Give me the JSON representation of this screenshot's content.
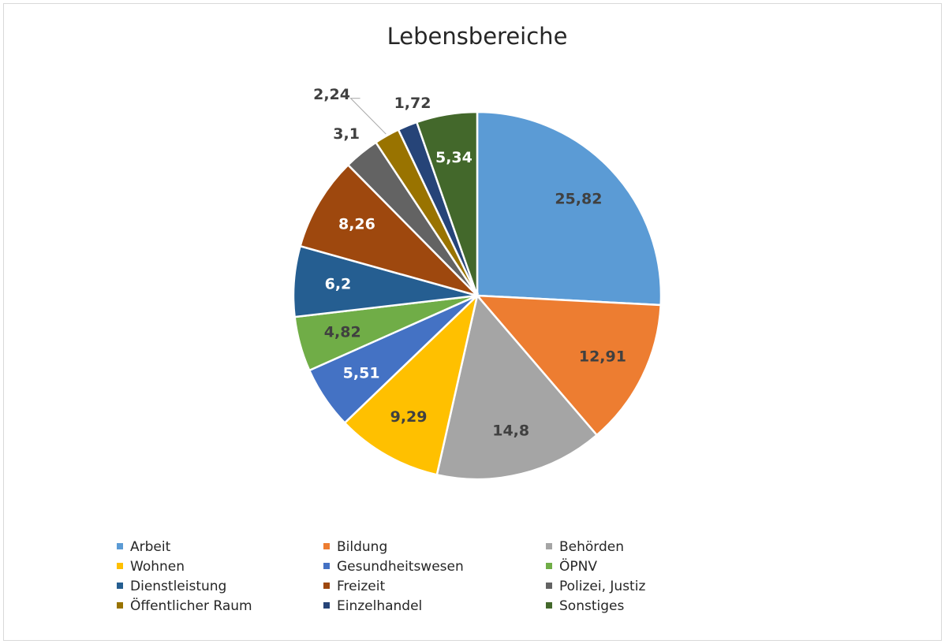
{
  "chart_data": {
    "type": "pie",
    "title": "Lebensbereiche",
    "categories": [
      "Arbeit",
      "Bildung",
      "Behörden",
      "Wohnen",
      "Gesundheitswesen",
      "ÖPNV",
      "Dienstleistung",
      "Freizeit",
      "Polizei, Justiz",
      "Öffentlicher Raum",
      "Einzelhandel",
      "Sonstiges"
    ],
    "values": [
      25.82,
      12.91,
      14.8,
      9.29,
      5.51,
      4.82,
      6.2,
      8.26,
      3.1,
      2.24,
      1.72,
      5.34
    ],
    "value_labels": [
      "25,82",
      "12,91",
      "14,8",
      "9,29",
      "5,51",
      "4,82",
      "6,2",
      "8,26",
      "3,1",
      "2,24",
      "1,72",
      "5,34"
    ],
    "colors": [
      "#5b9bd5",
      "#ed7d31",
      "#a5a5a5",
      "#ffc000",
      "#4472c4",
      "#70ad47",
      "#255e91",
      "#9e480e",
      "#636363",
      "#997300",
      "#264478",
      "#43682b"
    ],
    "legend": "bottom"
  }
}
